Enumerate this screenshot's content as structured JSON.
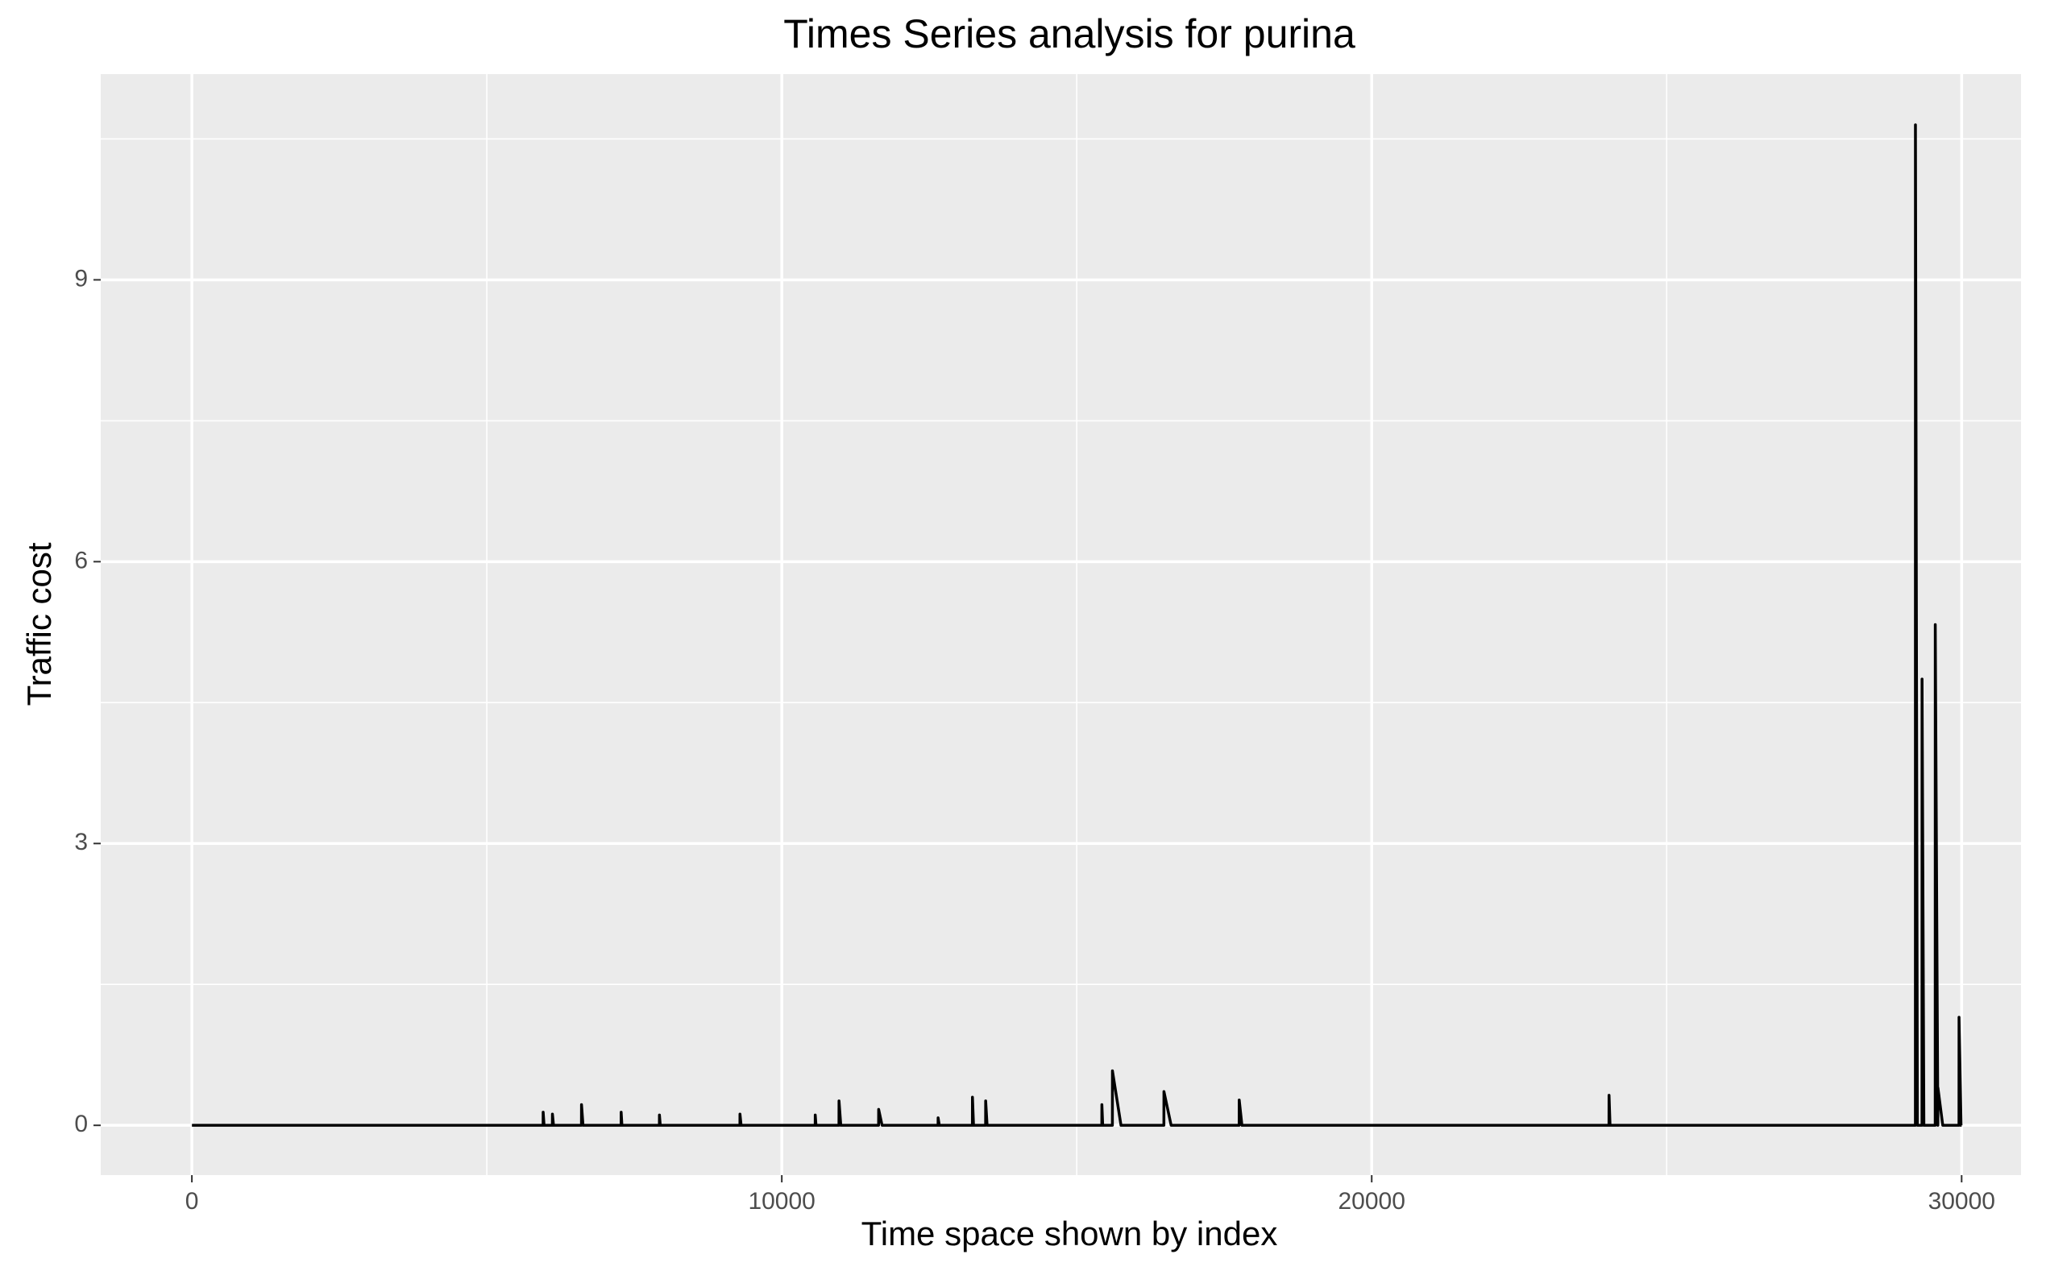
{
  "chart_data": {
    "type": "line",
    "title": "Times Series analysis for purina",
    "x_label": "Time space shown by index",
    "y_label": "Traffic cost",
    "x": [
      1,
      5954,
      5955,
      5970,
      6111,
      6112,
      6130,
      6604,
      6605,
      6630,
      7276,
      7277,
      7290,
      7925,
      7926,
      7940,
      9290,
      9291,
      9310,
      10566,
      10567,
      10580,
      10969,
      10970,
      11000,
      11641,
      11642,
      11700,
      12649,
      12650,
      12670,
      13231,
      13232,
      13250,
      13455,
      13456,
      13480,
      15425,
      15426,
      15440,
      15604,
      15605,
      15750,
      16477,
      16478,
      16600,
      17753,
      17754,
      17800,
      24022,
      24023,
      24040,
      29216,
      29217,
      29250,
      29328,
      29329,
      29360,
      29552,
      29553,
      29597,
      29598,
      29680,
      29955,
      29956,
      29990,
      30000
    ],
    "values": [
      0,
      0,
      0.14,
      0,
      0,
      0.12,
      0,
      0,
      0.22,
      0,
      0,
      0.14,
      0,
      0,
      0.11,
      0,
      0,
      0.12,
      0,
      0,
      0.11,
      0,
      0,
      0.26,
      0,
      0,
      0.17,
      0,
      0,
      0.08,
      0,
      0,
      0.3,
      0,
      0,
      0.26,
      0,
      0,
      0.22,
      0,
      0,
      0.58,
      0,
      0,
      0.36,
      0,
      0,
      0.27,
      0,
      0,
      0.32,
      0,
      0,
      10.65,
      0,
      0,
      4.75,
      0,
      0,
      5.33,
      0,
      0.4,
      0,
      0,
      1.15,
      0,
      0
    ],
    "color": "#000000",
    "xlim": [
      -1545,
      31007
    ],
    "xticks": [
      0,
      10000,
      20000,
      30000
    ],
    "x_minor_ticks": [
      5000,
      15000,
      25000
    ],
    "ylim": [
      -0.53,
      11.19
    ],
    "yticks": [
      0,
      3,
      6,
      9
    ],
    "y_minor_ticks": [
      1.5,
      4.5,
      7.5,
      10.5
    ],
    "grid": true
  }
}
